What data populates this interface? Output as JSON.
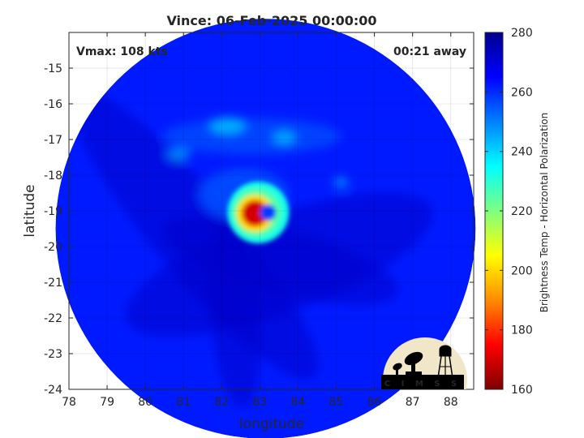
{
  "title": "Vince: 06-Feb-2025 00:00:00",
  "vmax_label": "Vmax: 108 kts",
  "time_away_label": "00:21 away",
  "xlabel": "longitude",
  "ylabel": "latitude",
  "colorbar_label": "Brightness Temp - Horizontal Polarization",
  "logo_text": "CIMSS",
  "map": {
    "xlim": [
      78,
      88.6
    ],
    "ylim": [
      -24,
      -14
    ],
    "xticks": [
      78,
      79,
      80,
      81,
      82,
      83,
      84,
      85,
      86,
      87,
      88
    ],
    "yticks": [
      -15,
      -16,
      -17,
      -18,
      -19,
      -20,
      -21,
      -22,
      -23,
      -24
    ],
    "grid": true,
    "swath_center": [
      83.15,
      -19.5
    ],
    "swath_radius_lon": 5.5,
    "storm_center": [
      83.0,
      -19.0
    ]
  },
  "colorbar": {
    "min": 160,
    "max": 280,
    "ticks": [
      160,
      180,
      200,
      220,
      240,
      260,
      280
    ],
    "colormap": "jet",
    "stops": [
      "#7f0000",
      "#ff0000",
      "#ff8c00",
      "#ffff00",
      "#7fff7f",
      "#00ffff",
      "#0080ff",
      "#0000ff",
      "#00008f"
    ]
  },
  "features": {
    "background_temp": 262,
    "eye_temp": 258,
    "eyewall_core_temp": 170,
    "eyewall_outer_temp": 232,
    "outer_band_temp": 243
  }
}
